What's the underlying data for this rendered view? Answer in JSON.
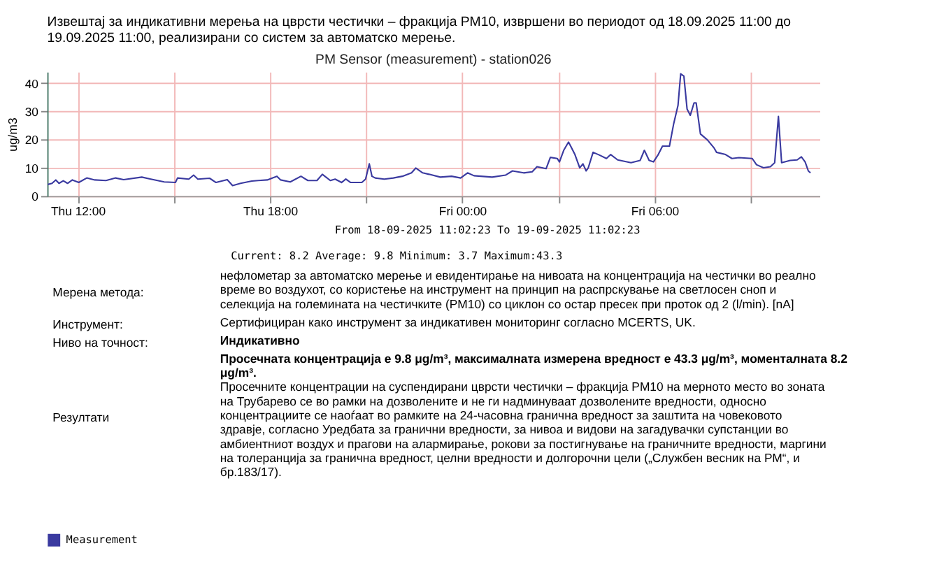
{
  "chart_data": {
    "type": "line",
    "title": "PM Sensor (measurement) - station026",
    "ylabel": "ug/m3",
    "x": [
      "2025-09-18T11:04",
      "2025-09-18T11:12",
      "2025-09-18T11:19",
      "2025-09-18T11:25",
      "2025-09-18T11:33",
      "2025-09-18T11:41",
      "2025-09-18T11:50",
      "2025-09-18T12:02",
      "2025-09-18T12:17",
      "2025-09-18T12:32",
      "2025-09-18T12:53",
      "2025-09-18T13:11",
      "2025-09-18T13:26",
      "2025-09-18T14:00",
      "2025-09-18T14:17",
      "2025-09-18T14:42",
      "2025-09-18T15:03",
      "2025-09-18T15:07",
      "2025-09-18T15:28",
      "2025-09-18T15:37",
      "2025-09-18T15:45",
      "2025-09-18T16:07",
      "2025-09-18T16:19",
      "2025-09-18T16:40",
      "2025-09-18T16:50",
      "2025-09-18T17:05",
      "2025-09-18T17:26",
      "2025-09-18T17:38",
      "2025-09-18T17:55",
      "2025-09-18T18:13",
      "2025-09-18T18:20",
      "2025-09-18T18:38",
      "2025-09-18T18:58",
      "2025-09-18T19:11",
      "2025-09-18T19:28",
      "2025-09-18T19:38",
      "2025-09-18T19:53",
      "2025-09-18T20:02",
      "2025-09-18T20:14",
      "2025-09-18T20:22",
      "2025-09-18T20:31",
      "2025-09-18T20:52",
      "2025-09-18T20:59",
      "2025-09-18T21:06",
      "2025-09-18T21:11",
      "2025-09-18T21:17",
      "2025-09-18T21:34",
      "2025-09-18T21:51",
      "2025-09-18T22:08",
      "2025-09-18T22:25",
      "2025-09-18T22:33",
      "2025-09-18T22:46",
      "2025-09-18T22:58",
      "2025-09-18T23:19",
      "2025-09-18T23:40",
      "2025-09-18T23:57",
      "2025-09-19T00:10",
      "2025-09-19T00:22",
      "2025-09-19T00:56",
      "2025-09-19T01:21",
      "2025-09-19T01:34",
      "2025-09-19T01:55",
      "2025-09-19T02:11",
      "2025-09-19T02:20",
      "2025-09-19T02:37",
      "2025-09-19T02:45",
      "2025-09-19T02:58",
      "2025-09-19T03:02",
      "2025-09-19T03:10",
      "2025-09-19T03:19",
      "2025-09-19T03:23",
      "2025-09-19T03:31",
      "2025-09-19T03:40",
      "2025-09-19T03:46",
      "2025-09-19T03:52",
      "2025-09-19T03:56",
      "2025-09-19T04:05",
      "2025-09-19T04:17",
      "2025-09-19T04:30",
      "2025-09-19T04:38",
      "2025-09-19T04:51",
      "2025-09-19T05:16",
      "2025-09-19T05:33",
      "2025-09-19T05:41",
      "2025-09-19T05:50",
      "2025-09-19T05:58",
      "2025-09-19T06:07",
      "2025-09-19T06:15",
      "2025-09-19T06:28",
      "2025-09-19T06:36",
      "2025-09-19T06:44",
      "2025-09-19T06:49",
      "2025-09-19T06:55",
      "2025-09-19T07:01",
      "2025-09-19T07:07",
      "2025-09-19T07:14",
      "2025-09-19T07:18",
      "2025-09-19T07:26",
      "2025-09-19T07:39",
      "2025-09-19T07:52",
      "2025-09-19T07:56",
      "2025-09-19T08:13",
      "2025-09-19T08:25",
      "2025-09-19T08:38",
      "2025-09-19T09:03",
      "2025-09-19T09:11",
      "2025-09-19T09:24",
      "2025-09-19T09:37",
      "2025-09-19T09:45",
      "2025-09-19T09:52",
      "2025-09-19T09:58",
      "2025-09-19T10:14",
      "2025-09-19T10:27",
      "2025-09-19T10:35",
      "2025-09-19T10:42",
      "2025-09-19T10:48",
      "2025-09-19T10:52"
    ],
    "series": [
      {
        "name": "Measurement",
        "color": "#3a3aa0",
        "values": [
          4.1,
          4.5,
          5.7,
          4.5,
          5.4,
          4.5,
          5.7,
          4.8,
          6.4,
          5.7,
          5.5,
          6.4,
          5.8,
          6.7,
          6.0,
          5.0,
          4.8,
          6.4,
          6.0,
          7.4,
          6.0,
          6.3,
          4.8,
          5.8,
          3.7,
          4.5,
          5.3,
          5.5,
          5.7,
          7.0,
          5.7,
          5.0,
          7.0,
          5.5,
          5.5,
          7.7,
          5.5,
          6.0,
          4.8,
          6.0,
          4.8,
          4.8,
          6.0,
          11.4,
          7.0,
          6.4,
          6.0,
          6.4,
          7.0,
          8.2,
          9.9,
          8.2,
          7.7,
          6.7,
          7.0,
          6.4,
          8.2,
          7.2,
          6.7,
          7.4,
          8.9,
          8.2,
          8.6,
          10.4,
          9.7,
          13.7,
          13.3,
          12.1,
          16.2,
          19.1,
          17.7,
          14.7,
          10.0,
          11.4,
          8.9,
          10.0,
          15.5,
          14.5,
          13.3,
          14.7,
          12.8,
          11.8,
          12.6,
          16.2,
          12.6,
          12.1,
          14.7,
          17.7,
          17.7,
          25.7,
          32.1,
          43.3,
          42.5,
          30.8,
          28.6,
          33.0,
          33.0,
          22.0,
          19.9,
          16.9,
          15.5,
          14.7,
          13.3,
          13.6,
          13.3,
          11.1,
          10.0,
          10.4,
          11.8,
          28.2,
          11.8,
          12.6,
          12.8,
          13.9,
          12.1,
          8.9,
          8.2
        ]
      }
    ],
    "xlim": [
      "2025-09-18T11:03",
      "2025-09-19T11:09"
    ],
    "xticks": [
      {
        "value": "2025-09-18T12:00",
        "label": "Thu 12:00"
      },
      {
        "value": "2025-09-18T15:00",
        "label": null
      },
      {
        "value": "2025-09-18T18:00",
        "label": "Thu 18:00"
      },
      {
        "value": "2025-09-18T21:00",
        "label": null
      },
      {
        "value": "2025-09-19T00:00",
        "label": "Fri 00:00"
      },
      {
        "value": "2025-09-19T03:00",
        "label": null
      },
      {
        "value": "2025-09-19T06:00",
        "label": "Fri 06:00"
      },
      {
        "value": "2025-09-19T09:00",
        "label": null
      }
    ],
    "ylim": [
      0,
      44
    ],
    "yticks": [
      0,
      10,
      20,
      30,
      40
    ],
    "grid": true,
    "legend": "bottom left",
    "marker": "none",
    "line_style": "solid",
    "annotations": [
      "Извештај за индикативни мерења на цврсти честички – фракција PM10, извршени во периодот од 18.09.2025 11:00 до 19.09.2025 11:00, реализирани со систем за автоматско мерење.",
      "From 18-09-2025 11:02:23 To 19-09-2025 11:02:23",
      "Current: 8.2  Average: 9.8  Minimum: 3.7  Maximum:43.3",
      "Мерена метода:",
      "нефлометар за автоматско мерење и евидентирање на нивоата на концентрација на честички во реално време во воздухот, со користење на инструмент на принцип на распрскување на светлосен сноп и селекција на големината на честичките (PM10) со циклон со остар пресек при проток од 2 (l/min). [nA]",
      "Инструмент:",
      "Сертифициран како инструмент за индикативен мониторинг согласно MCERTS, UK.",
      "Ниво на точност:",
      "Индикативно",
      "Резултати",
      "Просечната концентрација е 9.8 μg/m³, максималната измерена вредност е 43.3 μg/m³, моменталната 8.2 μg/m³.",
      "Просечните концентрации на суспендирани цврсти честички – фракција PM10 на мерното место во зоната на Трубарево се во рамки на дозволените и не ги надминуваат дозволените вредности, односно концентрациите се наоѓаат во рамките на 24-часовна гранична вредност за заштита на човековото здравје, согласно Уредбата за гранични вредности, за нивоа и видови на загадувачки супстанции во амбиентниот воздух  и прагови на алармирање, рокови за постигнување на граничните вредности, маргини на толеранција за гранична вредност, целни  вредности и долгорочни цели („Службен весник на РМ“, и бр.183/17)."
    ]
  }
}
